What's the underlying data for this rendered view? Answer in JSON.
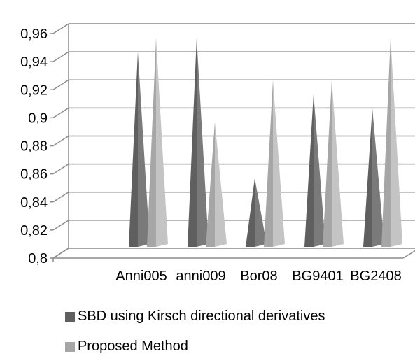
{
  "chart_data": {
    "type": "bar",
    "style": "3d-cone",
    "categories": [
      "Anni005",
      "anni009",
      "Bor08",
      "BG9401",
      "BG2408"
    ],
    "series": [
      {
        "name": "SBD using Kirsch directional derivatives",
        "values": [
          0.94,
          0.95,
          0.85,
          0.91,
          0.9
        ],
        "color": "#5f5f5f"
      },
      {
        "name": "Proposed Method",
        "values": [
          0.95,
          0.89,
          0.92,
          0.92,
          0.95
        ],
        "color": "#a6a6a6"
      }
    ],
    "yticks": [
      "0,8",
      "0,82",
      "0,84",
      "0,86",
      "0,88",
      "0,9",
      "0,92",
      "0,94",
      "0,96"
    ],
    "ylim": [
      0.8,
      0.96
    ],
    "grid": true,
    "legend": "bottom",
    "title": "",
    "xlabel": "",
    "ylabel": ""
  }
}
